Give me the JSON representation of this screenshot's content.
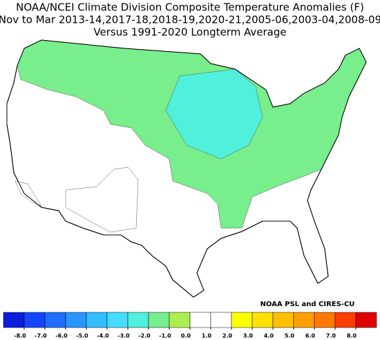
{
  "title": {
    "line1": "NOAA/NCEI Climate Division Composite Temperature Anomalies (F)",
    "line2": "Nov to Mar  2013-14,2017-18,2018-19,2020-21,2005-06,2003-04,2008-09",
    "line3": "Versus 1991-2020 Longterm Average"
  },
  "credit": "NOAA PSL and CIRES-CU",
  "map": {
    "regions": [
      {
        "value": -1.5
      },
      {
        "value": -2.5
      },
      {
        "value": 1.5
      },
      {
        "value": 1.5
      }
    ]
  },
  "colorbar": {
    "xlim": [
      -9,
      9
    ],
    "bins": [
      -9,
      -8,
      -7,
      -6,
      -5,
      -4,
      -3,
      -2,
      -1,
      0,
      1,
      2,
      3,
      4,
      5,
      6,
      7,
      8,
      9
    ],
    "colors": [
      "#0a1edc",
      "#1446ff",
      "#1e6eff",
      "#2896ff",
      "#32beff",
      "#46dcff",
      "#50f0dc",
      "#78ee8c",
      "#a8f050",
      "#ffffff",
      "#ffffff",
      "#ffff00",
      "#ffe000",
      "#ffc000",
      "#ffa000",
      "#ff7800",
      "#ff3c00",
      "#e00000",
      "#a00000"
    ],
    "xticks": [
      {
        "value": -8,
        "label": "-8.0"
      },
      {
        "value": -7,
        "label": "-7.0"
      },
      {
        "value": -6,
        "label": "-6.0"
      },
      {
        "value": -5,
        "label": "-5.0"
      },
      {
        "value": -4,
        "label": "-4.0"
      },
      {
        "value": -3,
        "label": "-3.0"
      },
      {
        "value": -2,
        "label": "-2.0"
      },
      {
        "value": -1,
        "label": "-1.0"
      },
      {
        "value": 0,
        "label": "0.0"
      },
      {
        "value": 1,
        "label": "1.0"
      },
      {
        "value": 2,
        "label": "2.0"
      },
      {
        "value": 3,
        "label": "3.0"
      },
      {
        "value": 4,
        "label": "4.0"
      },
      {
        "value": 5,
        "label": "5.0"
      },
      {
        "value": 6,
        "label": "6.0"
      },
      {
        "value": 7,
        "label": "7.0"
      },
      {
        "value": 8,
        "label": "8.0"
      }
    ]
  }
}
